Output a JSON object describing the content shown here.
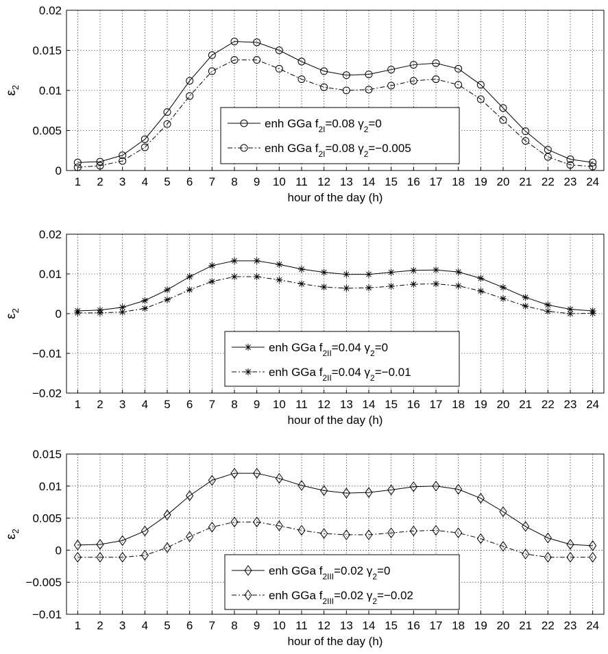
{
  "chart_data": [
    {
      "type": "line",
      "x": [
        1,
        2,
        3,
        4,
        5,
        6,
        7,
        8,
        9,
        10,
        11,
        12,
        13,
        14,
        15,
        16,
        17,
        18,
        19,
        20,
        21,
        22,
        23,
        24
      ],
      "xlabel": "hour of the day (h)",
      "ylabel": "ε2",
      "xlim": [
        0.5,
        24.5
      ],
      "ylim": [
        0,
        0.02
      ],
      "xticks": [
        "1",
        "2",
        "3",
        "4",
        "5",
        "6",
        "7",
        "8",
        "9",
        "10",
        "11",
        "12",
        "13",
        "14",
        "15",
        "16",
        "17",
        "18",
        "19",
        "20",
        "21",
        "22",
        "23",
        "24"
      ],
      "yticks": [
        "0",
        "0.005",
        "0.01",
        "0.015",
        "0.02"
      ],
      "grid": true,
      "legend": "center",
      "series": [
        {
          "name": "enh GGa f2I=0.08 γ2=0",
          "label_parts": [
            "enh GGa f",
            "2I",
            "=0.08 γ",
            "2",
            "=0"
          ],
          "marker": "circle",
          "linestyle": "solid",
          "values": [
            0.001,
            0.0011,
            0.0019,
            0.0039,
            0.0073,
            0.0112,
            0.0144,
            0.0161,
            0.016,
            0.015,
            0.0136,
            0.0124,
            0.0119,
            0.012,
            0.0126,
            0.0132,
            0.0134,
            0.0127,
            0.0107,
            0.0078,
            0.0049,
            0.0026,
            0.0014,
            0.001
          ]
        },
        {
          "name": "enh GGa f2I=0.08 γ2=−0.005",
          "label_parts": [
            "enh GGa f",
            "2I",
            "=0.08 γ",
            "2",
            "=−0.005"
          ],
          "marker": "circle",
          "linestyle": "dashdot",
          "values": [
            0.0004,
            0.0006,
            0.0012,
            0.0029,
            0.0058,
            0.0093,
            0.0124,
            0.0138,
            0.0138,
            0.0127,
            0.0114,
            0.0104,
            0.01,
            0.0101,
            0.0106,
            0.0112,
            0.0114,
            0.0107,
            0.0089,
            0.0063,
            0.0037,
            0.0017,
            0.0007,
            0.0005
          ]
        }
      ]
    },
    {
      "type": "line",
      "x": [
        1,
        2,
        3,
        4,
        5,
        6,
        7,
        8,
        9,
        10,
        11,
        12,
        13,
        14,
        15,
        16,
        17,
        18,
        19,
        20,
        21,
        22,
        23,
        24
      ],
      "xlabel": "hour of the day (h)",
      "ylabel": "ε2",
      "xlim": [
        0.5,
        24.5
      ],
      "ylim": [
        -0.02,
        0.02
      ],
      "xticks": [
        "1",
        "2",
        "3",
        "4",
        "5",
        "6",
        "7",
        "8",
        "9",
        "10",
        "11",
        "12",
        "13",
        "14",
        "15",
        "16",
        "17",
        "18",
        "19",
        "20",
        "21",
        "22",
        "23",
        "24"
      ],
      "yticks": [
        "−0.02",
        "−0.01",
        "0",
        "0.01",
        "0.02"
      ],
      "grid": true,
      "legend": "bottom-center",
      "series": [
        {
          "name": "enh GGa f2II=0.04 γ2=0",
          "label_parts": [
            "enh GGa f",
            "2II",
            "=0.04 γ",
            "2",
            "=0"
          ],
          "marker": "asterisk",
          "linestyle": "solid",
          "values": [
            0.0007,
            0.0009,
            0.0016,
            0.0033,
            0.006,
            0.0093,
            0.0121,
            0.0133,
            0.0133,
            0.0124,
            0.0112,
            0.0104,
            0.0099,
            0.0099,
            0.0104,
            0.0109,
            0.011,
            0.0105,
            0.0089,
            0.0066,
            0.0041,
            0.0022,
            0.0011,
            0.0007
          ]
        },
        {
          "name": "enh GGa f2II=0.04 γ2=−0.01",
          "label_parts": [
            "enh GGa f",
            "2II",
            "=0.04 γ",
            "2",
            "=−0.01"
          ],
          "marker": "asterisk",
          "linestyle": "dashdot",
          "values": [
            0.0002,
            0.0002,
            0.0004,
            0.0013,
            0.0035,
            0.006,
            0.0081,
            0.0093,
            0.0093,
            0.0085,
            0.0075,
            0.0067,
            0.0064,
            0.0065,
            0.0069,
            0.0074,
            0.0075,
            0.007,
            0.0057,
            0.0038,
            0.0019,
            0.0006,
            0.0,
            0.0001
          ]
        }
      ]
    },
    {
      "type": "line",
      "x": [
        1,
        2,
        3,
        4,
        5,
        6,
        7,
        8,
        9,
        10,
        11,
        12,
        13,
        14,
        15,
        16,
        17,
        18,
        19,
        20,
        21,
        22,
        23,
        24
      ],
      "xlabel": "hour of the day (h)",
      "ylabel": "ε2",
      "xlim": [
        0.5,
        24.5
      ],
      "ylim": [
        -0.01,
        0.015
      ],
      "xticks": [
        "1",
        "2",
        "3",
        "4",
        "5",
        "6",
        "7",
        "8",
        "9",
        "10",
        "11",
        "12",
        "13",
        "14",
        "15",
        "16",
        "17",
        "18",
        "19",
        "20",
        "21",
        "22",
        "23",
        "24"
      ],
      "yticks": [
        "−0.01",
        "−0.005",
        "0",
        "0.005",
        "0.01",
        "0.015"
      ],
      "grid": true,
      "legend": "bottom-center",
      "series": [
        {
          "name": "enh GGa f2III=0.02 γ2=0",
          "label_parts": [
            "enh GGa f",
            "2III",
            "=0.02 γ",
            "2",
            "=0"
          ],
          "marker": "diamond",
          "linestyle": "solid",
          "values": [
            0.0008,
            0.0009,
            0.0015,
            0.003,
            0.0055,
            0.0085,
            0.0109,
            0.012,
            0.012,
            0.0112,
            0.0101,
            0.0093,
            0.0089,
            0.009,
            0.0094,
            0.0099,
            0.01,
            0.0095,
            0.0081,
            0.006,
            0.0037,
            0.0019,
            0.0009,
            0.0007
          ]
        },
        {
          "name": "enh GGa f2III=0.02 γ2=−0.02",
          "label_parts": [
            "enh GGa f",
            "2III",
            "=0.02 γ",
            "2",
            "=−0.02"
          ],
          "marker": "diamond",
          "linestyle": "dashdot",
          "values": [
            -0.0011,
            -0.0011,
            -0.0011,
            -0.0008,
            0.0004,
            0.0021,
            0.0036,
            0.0044,
            0.0044,
            0.0038,
            0.0031,
            0.0026,
            0.0024,
            0.0024,
            0.0027,
            0.003,
            0.0031,
            0.0027,
            0.0018,
            0.0006,
            -0.0006,
            -0.0011,
            -0.0011,
            -0.0011
          ]
        }
      ]
    }
  ]
}
